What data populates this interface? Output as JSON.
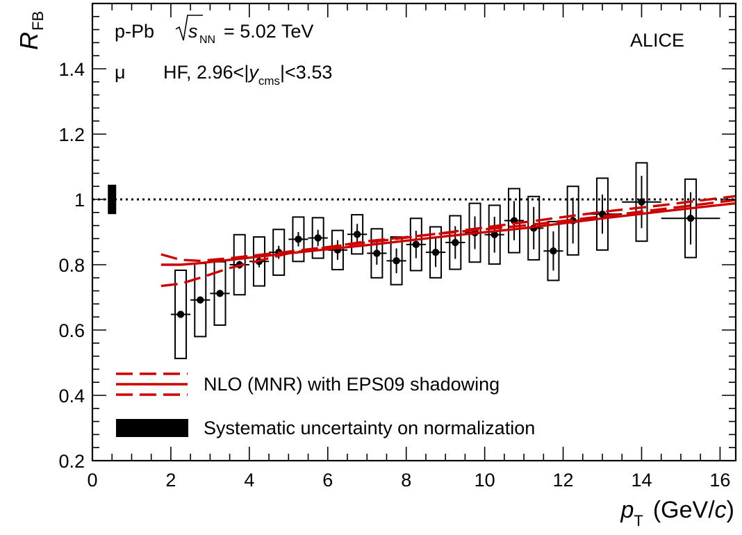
{
  "chart_data": {
    "type": "scatter",
    "ylabel": {
      "main": "R",
      "sub": "FB"
    },
    "xlabel": {
      "p": "p",
      "sub": "T",
      "unit_pre": "(GeV/",
      "unit_c": "c",
      "unit_post": ")"
    },
    "xlim": [
      0,
      16.4
    ],
    "ylim": [
      0.2,
      1.6
    ],
    "x_ticks": [
      "0",
      "2",
      "4",
      "6",
      "8",
      "10",
      "12",
      "14",
      "16"
    ],
    "y_ticks": [
      "0.2",
      "0.4",
      "0.6",
      "0.8",
      "1",
      "1.2",
      "1.4"
    ],
    "annotations": {
      "system": "p-Pb",
      "sqrt_s": "s",
      "sqrt_s_sub": "NN",
      "energy": "= 5.02 TeV",
      "experiment": "ALICE",
      "particle": "μ",
      "selection_pre": "HF, 2.96<|",
      "selection_y": "y",
      "selection_y_sub": "cms",
      "selection_post": "|<3.53"
    },
    "legend": {
      "model": "NLO (MNR) with EPS09 shadowing",
      "norm": "Systematic uncertainty on normalization"
    },
    "reference_line": 1.0,
    "norm_uncertainty": {
      "x": 0.5,
      "low": 0.955,
      "high": 1.045
    },
    "points": [
      {
        "x": 2.25,
        "y": 0.648,
        "xerr": 0.25,
        "stat": 0.0,
        "sys": 0.135
      },
      {
        "x": 2.75,
        "y": 0.692,
        "xerr": 0.25,
        "stat": 0.0,
        "sys": 0.112
      },
      {
        "x": 3.25,
        "y": 0.712,
        "xerr": 0.25,
        "stat": 0.0,
        "sys": 0.097
      },
      {
        "x": 3.75,
        "y": 0.8,
        "xerr": 0.25,
        "stat": 0.012,
        "sys": 0.092
      },
      {
        "x": 4.25,
        "y": 0.81,
        "xerr": 0.25,
        "stat": 0.018,
        "sys": 0.075
      },
      {
        "x": 4.75,
        "y": 0.838,
        "xerr": 0.25,
        "stat": 0.02,
        "sys": 0.07
      },
      {
        "x": 5.25,
        "y": 0.878,
        "xerr": 0.25,
        "stat": 0.022,
        "sys": 0.068
      },
      {
        "x": 5.75,
        "y": 0.882,
        "xerr": 0.25,
        "stat": 0.025,
        "sys": 0.062
      },
      {
        "x": 6.25,
        "y": 0.845,
        "xerr": 0.25,
        "stat": 0.03,
        "sys": 0.06
      },
      {
        "x": 6.75,
        "y": 0.893,
        "xerr": 0.25,
        "stat": 0.032,
        "sys": 0.06
      },
      {
        "x": 7.25,
        "y": 0.835,
        "xerr": 0.25,
        "stat": 0.035,
        "sys": 0.075
      },
      {
        "x": 7.75,
        "y": 0.812,
        "xerr": 0.25,
        "stat": 0.038,
        "sys": 0.073
      },
      {
        "x": 8.25,
        "y": 0.862,
        "xerr": 0.25,
        "stat": 0.042,
        "sys": 0.08
      },
      {
        "x": 8.75,
        "y": 0.838,
        "xerr": 0.25,
        "stat": 0.045,
        "sys": 0.078
      },
      {
        "x": 9.25,
        "y": 0.868,
        "xerr": 0.25,
        "stat": 0.05,
        "sys": 0.082
      },
      {
        "x": 9.75,
        "y": 0.898,
        "xerr": 0.25,
        "stat": 0.05,
        "sys": 0.09
      },
      {
        "x": 10.25,
        "y": 0.892,
        "xerr": 0.25,
        "stat": 0.055,
        "sys": 0.09
      },
      {
        "x": 10.75,
        "y": 0.935,
        "xerr": 0.25,
        "stat": 0.06,
        "sys": 0.098
      },
      {
        "x": 11.25,
        "y": 0.912,
        "xerr": 0.25,
        "stat": 0.065,
        "sys": 0.097
      },
      {
        "x": 11.75,
        "y": 0.842,
        "xerr": 0.25,
        "stat": 0.06,
        "sys": 0.09
      },
      {
        "x": 12.25,
        "y": 0.935,
        "xerr": 0.25,
        "stat": 0.07,
        "sys": 0.105
      },
      {
        "x": 13.0,
        "y": 0.955,
        "xerr": 0.5,
        "stat": 0.06,
        "sys": 0.11
      },
      {
        "x": 14.0,
        "y": 0.992,
        "xerr": 0.5,
        "stat": 0.08,
        "sys": 0.12
      },
      {
        "x": 15.25,
        "y": 0.942,
        "xerr": 0.75,
        "stat": 0.08,
        "sys": 0.12
      }
    ],
    "model_curves": [
      {
        "style": "dashed",
        "x": [
          1.75,
          2.25,
          2.75,
          3.5,
          5,
          7,
          9,
          11,
          13,
          14.5,
          16.4
        ],
        "y": [
          0.735,
          0.742,
          0.76,
          0.79,
          0.835,
          0.872,
          0.897,
          0.92,
          0.948,
          0.97,
          0.998
        ]
      },
      {
        "style": "solid",
        "x": [
          1.75,
          2.25,
          2.75,
          3.5,
          5,
          7,
          9,
          11,
          13,
          14.5,
          16.4
        ],
        "y": [
          0.8,
          0.8,
          0.805,
          0.815,
          0.835,
          0.86,
          0.887,
          0.912,
          0.942,
          0.963,
          0.988
        ]
      },
      {
        "style": "dashed",
        "x": [
          1.75,
          2.25,
          2.75,
          3.5,
          5,
          7,
          9,
          11,
          13,
          14.5,
          16.4
        ],
        "y": [
          0.832,
          0.815,
          0.812,
          0.82,
          0.84,
          0.868,
          0.898,
          0.93,
          0.962,
          0.982,
          1.01
        ]
      }
    ],
    "colors": {
      "model": "#cc0000",
      "points": "#000000",
      "norm": "#000000"
    },
    "grid": false,
    "legend_placement": "bottom-left"
  }
}
